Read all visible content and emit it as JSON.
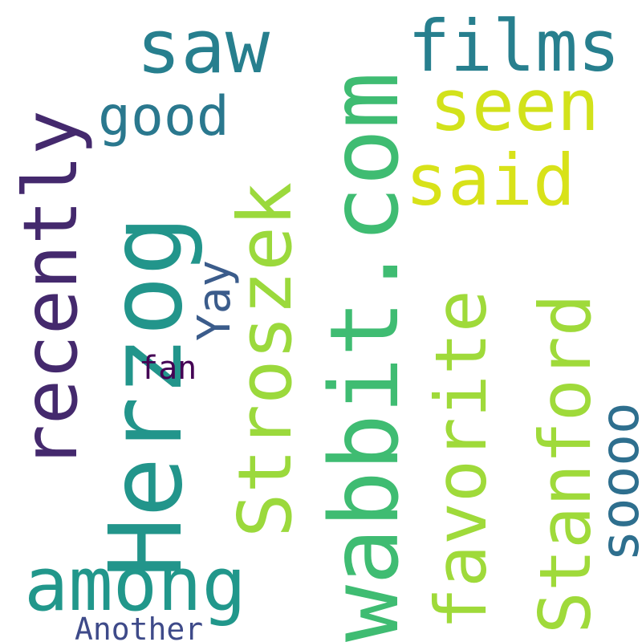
{
  "words": [
    {
      "text": "wabbit.com",
      "color": "#3fbc72"
    },
    {
      "text": "Herzog",
      "color": "#22958b"
    },
    {
      "text": "recently",
      "color": "#44296d"
    },
    {
      "text": "Stroszek",
      "color": "#9bd93c"
    },
    {
      "text": "favorite",
      "color": "#9fda3a"
    },
    {
      "text": "Stanford",
      "color": "#9fda3a"
    },
    {
      "text": "among",
      "color": "#21978b"
    },
    {
      "text": "films",
      "color": "#277f8e"
    },
    {
      "text": "saw",
      "color": "#277f8e"
    },
    {
      "text": "seen",
      "color": "#d2e21b"
    },
    {
      "text": "said",
      "color": "#d8e219"
    },
    {
      "text": "soooo",
      "color": "#2e6f8e"
    },
    {
      "text": "good",
      "color": "#2a788e"
    },
    {
      "text": "Yay",
      "color": "#3b5c8b"
    },
    {
      "text": "fan",
      "color": "#440154"
    },
    {
      "text": "Another",
      "color": "#3e4a89"
    }
  ]
}
